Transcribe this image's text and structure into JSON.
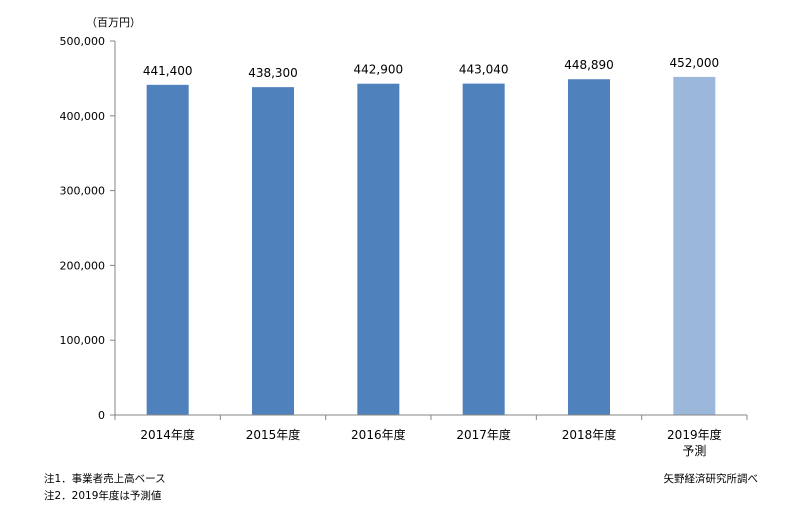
{
  "unit_label": "（百万円）",
  "notes": [
    "注1．事業者売上高ベース",
    "注2．2019年度は予測値"
  ],
  "source": "矢野経済研究所調べ",
  "colors": {
    "actual": "#4f81bd",
    "forecast": "#9bb7da",
    "axis": "#868686"
  },
  "chart_data": {
    "type": "bar",
    "categories": [
      "2014年度",
      "2015年度",
      "2016年度",
      "2017年度",
      "2018年度",
      "2019年度\n予測"
    ],
    "values": [
      441400,
      438300,
      442900,
      443040,
      448890,
      452000
    ],
    "value_labels": [
      "441,400",
      "438,300",
      "442,900",
      "443,040",
      "448,890",
      "452,000"
    ],
    "forecast": [
      false,
      false,
      false,
      false,
      false,
      true
    ],
    "ylim": [
      0,
      500000
    ],
    "yticks": [
      0,
      100000,
      200000,
      300000,
      400000,
      500000
    ],
    "ytick_labels": [
      "0",
      "100,000",
      "200,000",
      "300,000",
      "400,000",
      "500,000"
    ],
    "grid": false,
    "title": "",
    "xlabel": "",
    "ylabel": ""
  }
}
